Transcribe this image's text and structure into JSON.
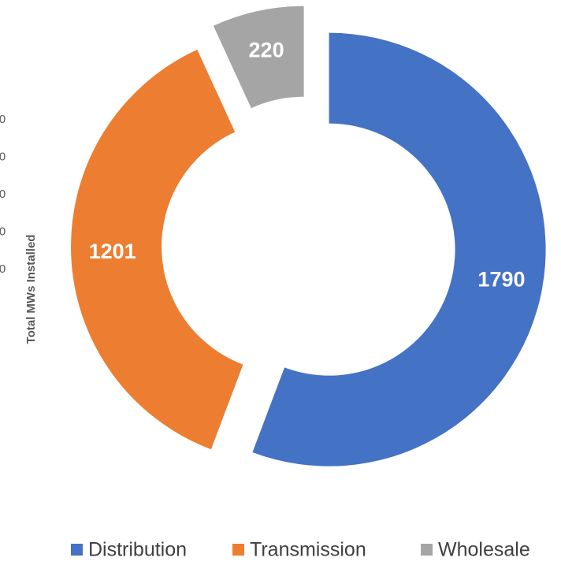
{
  "chart_data": {
    "type": "donut",
    "categories": [
      "Distribution",
      "Transmission",
      "Wholesale"
    ],
    "values": [
      1790,
      1201,
      220
    ],
    "colors": [
      "#4472c4",
      "#ed7d31",
      "#a5a5a5"
    ],
    "legend": "bottom"
  },
  "background_axis": {
    "label": "Total MWs Installed",
    "tick_labels": [
      "0",
      "0",
      "0",
      "0",
      "0"
    ]
  }
}
